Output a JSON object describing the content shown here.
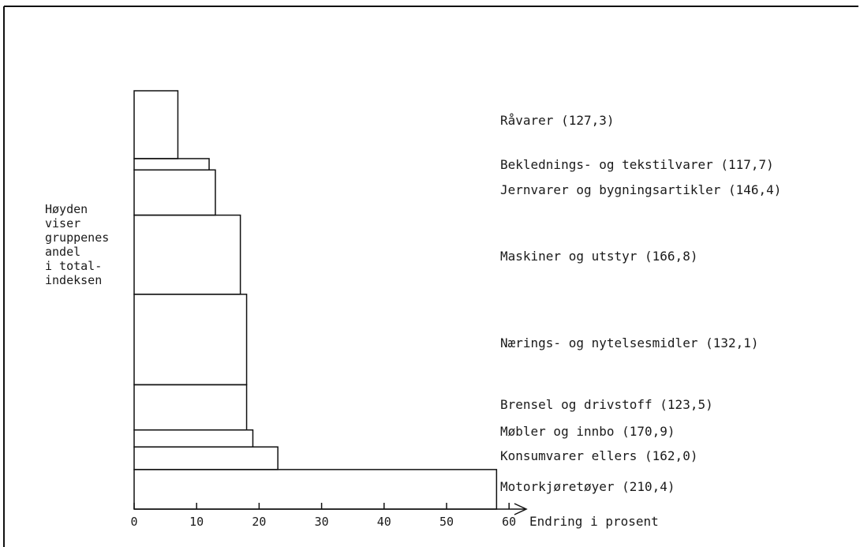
{
  "chart_data": {
    "type": "bar",
    "orientation": "horizontal",
    "variable_height_bars": true,
    "ylabel_lines": [
      "Høyden",
      "viser",
      "gruppenes",
      "andel",
      "i total-",
      "indeksen"
    ],
    "xlabel": "Endring i prosent",
    "xlim": [
      0,
      60
    ],
    "xticks": [
      "0",
      "10",
      "20",
      "30",
      "40",
      "50",
      "60"
    ],
    "categories": [
      {
        "label": "Råvarer (127,3)",
        "value": 7
      },
      {
        "label": "Beklednings- og tekstilvarer (117,7)",
        "value": 12
      },
      {
        "label": "Jernvarer og bygningsartikler (146,4)",
        "value": 13
      },
      {
        "label": "Maskiner og utstyr (166,8)",
        "value": 17
      },
      {
        "label": "Nærings- og nytelsesmidler (132,1)",
        "value": 18
      },
      {
        "label": "Brensel og drivstoff (123,5)",
        "value": 18
      },
      {
        "label": "Møbler og innbo (170,9)",
        "value": 19
      },
      {
        "label": "Konsumvarer ellers (162,0)",
        "value": 23
      },
      {
        "label": "Motorkjøretøyer (210,4)",
        "value": 58
      }
    ],
    "shares": [
      6,
      1,
      4,
      7,
      8,
      4,
      1.5,
      2,
      3.5
    ],
    "legend": "none",
    "grid": false
  }
}
